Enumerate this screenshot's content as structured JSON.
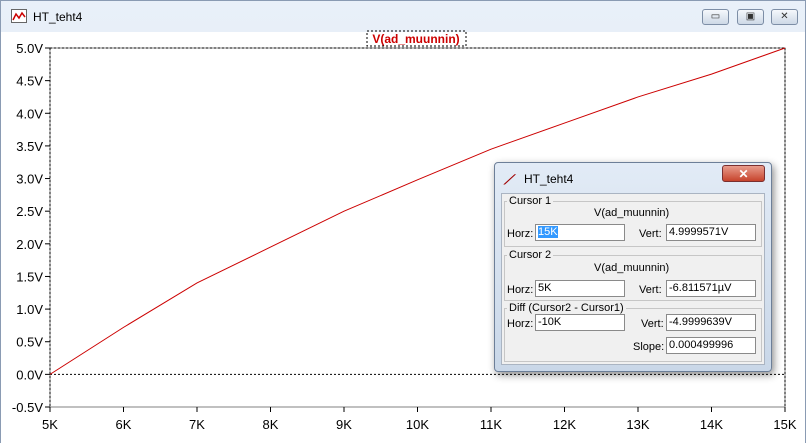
{
  "window": {
    "title": "HT_teht4",
    "minimize_glyph": "▭",
    "restore_glyph": "▣",
    "close_glyph": "✕",
    "app_icon": "waveform-icon"
  },
  "plot": {
    "trace_label": "V(ad_muunnin)",
    "trace_color": "#cc0000"
  },
  "chart_data": {
    "type": "line",
    "title": "V(ad_muunnin)",
    "xlabel": "",
    "ylabel": "",
    "x_tick_labels": [
      "5K",
      "6K",
      "7K",
      "8K",
      "9K",
      "10K",
      "11K",
      "12K",
      "13K",
      "14K",
      "15K"
    ],
    "y_tick_labels": [
      "5.0V",
      "4.5V",
      "4.0V",
      "3.5V",
      "3.0V",
      "2.5V",
      "2.0V",
      "1.5V",
      "1.0V",
      "0.5V",
      "0.0V",
      "-0.5V"
    ],
    "xlim": [
      5000,
      15000
    ],
    "ylim": [
      -0.5,
      5.0
    ],
    "grid": false,
    "series": [
      {
        "name": "V(ad_muunnin)",
        "x": [
          5000,
          6000,
          7000,
          8000,
          9000,
          10000,
          11000,
          12000,
          13000,
          14000,
          15000
        ],
        "y": [
          0.0,
          0.72,
          1.4,
          1.95,
          2.5,
          2.98,
          3.45,
          3.85,
          4.25,
          4.6,
          5.0
        ]
      }
    ],
    "cursors": {
      "cursor1_x": 15000,
      "cursor2_x": 5000
    }
  },
  "cursor_dialog": {
    "title": "HT_teht4",
    "icon": "ltspice-icon",
    "close_glyph": "✕",
    "cursor1": {
      "group_label": "Cursor 1",
      "trace": "V(ad_muunnin)",
      "horz_label": "Horz:",
      "horz_value": "15K",
      "vert_label": "Vert:",
      "vert_value": "4.9999571V"
    },
    "cursor2": {
      "group_label": "Cursor 2",
      "trace": "V(ad_muunnin)",
      "horz_label": "Horz:",
      "horz_value": "5K",
      "vert_label": "Vert:",
      "vert_value": "-6.811571µV"
    },
    "diff": {
      "group_label": "Diff (Cursor2 - Cursor1)",
      "horz_label": "Horz:",
      "horz_value": "-10K",
      "vert_label": "Vert:",
      "vert_value": "-4.9999639V",
      "slope_label": "Slope:",
      "slope_value": "0.000499996"
    }
  }
}
